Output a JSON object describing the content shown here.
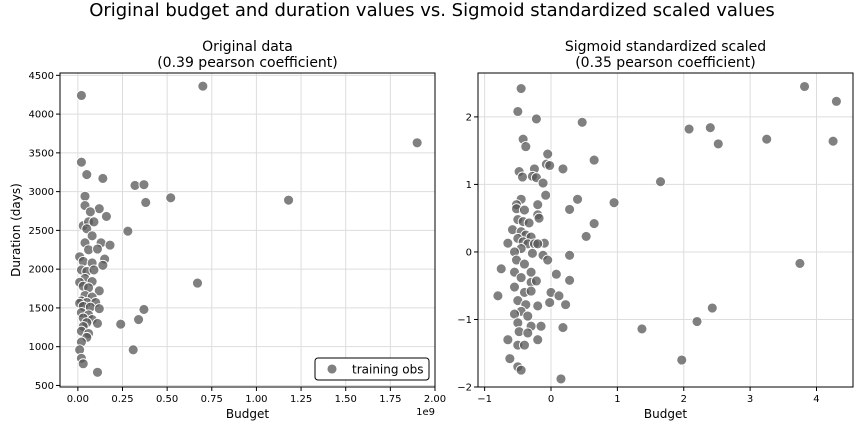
{
  "page": {
    "suptitle": "Original budget and duration values vs. Sigmoid standardized scaled values"
  },
  "colors": {
    "point": "#555555",
    "point_edge": "#ffffff",
    "axis": "#000000",
    "grid": "#dddddd"
  },
  "chart_data": [
    {
      "type": "scatter",
      "title": "Original data",
      "subtitle": "(0.39 pearson coefficient)",
      "xlabel": "Budget",
      "ylabel": "Duration (days)",
      "x_multiplier_label": "1e9",
      "xlim": [
        -0.1,
        2.0
      ],
      "ylim": [
        480,
        4530
      ],
      "xticks": [
        0.0,
        0.25,
        0.5,
        0.75,
        1.0,
        1.25,
        1.5,
        1.75,
        2.0
      ],
      "xtick_labels": [
        "0.00",
        "0.25",
        "0.50",
        "0.75",
        "1.00",
        "1.25",
        "1.50",
        "1.75",
        "2.00"
      ],
      "yticks": [
        500,
        1000,
        1500,
        2000,
        2500,
        3000,
        3500,
        4000,
        4500
      ],
      "ytick_labels": [
        "500",
        "1000",
        "1500",
        "2000",
        "2500",
        "3000",
        "3500",
        "4000",
        "4500"
      ],
      "grid": true,
      "legend": {
        "position": "lower-right",
        "label": "training obs"
      },
      "series": [
        {
          "name": "training obs",
          "points": [
            [
              0.02,
              4240
            ],
            [
              0.7,
              4360
            ],
            [
              1.9,
              3630
            ],
            [
              0.02,
              3380
            ],
            [
              0.05,
              3220
            ],
            [
              0.14,
              3170
            ],
            [
              0.32,
              3080
            ],
            [
              0.37,
              3090
            ],
            [
              0.38,
              2860
            ],
            [
              0.52,
              2920
            ],
            [
              1.18,
              2890
            ],
            [
              0.04,
              2940
            ],
            [
              0.04,
              2820
            ],
            [
              0.12,
              2780
            ],
            [
              0.16,
              2680
            ],
            [
              0.07,
              2740
            ],
            [
              0.03,
              2560
            ],
            [
              0.06,
              2610
            ],
            [
              0.09,
              2610
            ],
            [
              0.05,
              2520
            ],
            [
              0.28,
              2490
            ],
            [
              0.08,
              2430
            ],
            [
              0.13,
              2340
            ],
            [
              0.18,
              2310
            ],
            [
              0.04,
              2340
            ],
            [
              0.06,
              2250
            ],
            [
              0.11,
              2260
            ],
            [
              0.01,
              2160
            ],
            [
              0.03,
              2100
            ],
            [
              0.08,
              2080
            ],
            [
              0.15,
              2130
            ],
            [
              0.14,
              2050
            ],
            [
              0.02,
              1990
            ],
            [
              0.05,
              1970
            ],
            [
              0.09,
              1990
            ],
            [
              0.04,
              1880
            ],
            [
              0.08,
              1840
            ],
            [
              0.01,
              1830
            ],
            [
              0.03,
              1780
            ],
            [
              0.06,
              1760
            ],
            [
              0.12,
              1720
            ],
            [
              0.04,
              1660
            ],
            [
              0.08,
              1640
            ],
            [
              0.67,
              1820
            ],
            [
              0.02,
              1590
            ],
            [
              0.05,
              1570
            ],
            [
              0.1,
              1570
            ],
            [
              0.01,
              1560
            ],
            [
              0.03,
              1520
            ],
            [
              0.07,
              1510
            ],
            [
              0.12,
              1490
            ],
            [
              0.37,
              1480
            ],
            [
              0.02,
              1440
            ],
            [
              0.06,
              1410
            ],
            [
              0.03,
              1370
            ],
            [
              0.08,
              1350
            ],
            [
              0.34,
              1350
            ],
            [
              0.05,
              1310
            ],
            [
              0.11,
              1300
            ],
            [
              0.24,
              1290
            ],
            [
              0.03,
              1260
            ],
            [
              0.02,
              1200
            ],
            [
              0.06,
              1170
            ],
            [
              0.05,
              1120
            ],
            [
              0.02,
              1060
            ],
            [
              0.01,
              960
            ],
            [
              0.31,
              960
            ],
            [
              0.02,
              850
            ],
            [
              0.03,
              780
            ],
            [
              0.11,
              670
            ]
          ]
        }
      ]
    },
    {
      "type": "scatter",
      "title": "Sigmoid standardized scaled",
      "subtitle": "(0.35 pearson coefficient)",
      "xlabel": "Budget",
      "ylabel": "",
      "xlim": [
        -1.1,
        4.55
      ],
      "ylim": [
        -2.0,
        2.65
      ],
      "xticks": [
        -1,
        0,
        1,
        2,
        3,
        4
      ],
      "xtick_labels": [
        "−1",
        "0",
        "1",
        "2",
        "3",
        "4"
      ],
      "yticks": [
        -2,
        -1,
        0,
        1,
        2
      ],
      "ytick_labels": [
        "−2",
        "−1",
        "0",
        "1",
        "2"
      ],
      "grid": true,
      "series": [
        {
          "name": "training obs",
          "points": [
            [
              -0.45,
              2.42
            ],
            [
              -0.5,
              2.08
            ],
            [
              -0.22,
              1.97
            ],
            [
              0.47,
              1.92
            ],
            [
              -0.42,
              1.67
            ],
            [
              -0.38,
              1.56
            ],
            [
              -0.05,
              1.45
            ],
            [
              -0.07,
              1.3
            ],
            [
              -0.02,
              1.28
            ],
            [
              0.65,
              1.36
            ],
            [
              0.18,
              1.23
            ],
            [
              -0.25,
              1.23
            ],
            [
              -0.48,
              1.19
            ],
            [
              -0.43,
              1.11
            ],
            [
              -0.28,
              1.12
            ],
            [
              -0.22,
              1.1
            ],
            [
              -0.12,
              1.02
            ],
            [
              -0.08,
              0.84
            ],
            [
              1.65,
              1.04
            ],
            [
              -0.45,
              0.78
            ],
            [
              -0.52,
              0.7
            ],
            [
              -0.52,
              0.64
            ],
            [
              -0.4,
              0.62
            ],
            [
              -0.2,
              0.7
            ],
            [
              -0.2,
              0.55
            ],
            [
              -0.18,
              0.5
            ],
            [
              0.4,
              0.78
            ],
            [
              0.95,
              0.73
            ],
            [
              0.28,
              0.63
            ],
            [
              0.65,
              0.42
            ],
            [
              -0.5,
              0.48
            ],
            [
              -0.42,
              0.45
            ],
            [
              -0.33,
              0.43
            ],
            [
              -0.58,
              0.33
            ],
            [
              -0.45,
              0.3
            ],
            [
              -0.38,
              0.25
            ],
            [
              -0.3,
              0.22
            ],
            [
              0.53,
              0.23
            ],
            [
              -0.5,
              0.2
            ],
            [
              -0.42,
              0.15
            ],
            [
              -0.35,
              0.12
            ],
            [
              -0.25,
              0.12
            ],
            [
              -0.1,
              0.13
            ],
            [
              -0.2,
              0.12
            ],
            [
              -0.65,
              0.13
            ],
            [
              -0.45,
              0.05
            ],
            [
              -0.55,
              0.0
            ],
            [
              -0.28,
              -0.02
            ],
            [
              -0.12,
              -0.05
            ],
            [
              -0.05,
              -0.12
            ],
            [
              0.28,
              -0.05
            ],
            [
              -0.52,
              -0.12
            ],
            [
              -0.4,
              -0.18
            ],
            [
              -0.75,
              -0.25
            ],
            [
              -0.55,
              -0.3
            ],
            [
              -0.3,
              -0.3
            ],
            [
              0.08,
              -0.33
            ],
            [
              -0.45,
              -0.38
            ],
            [
              -0.3,
              -0.45
            ],
            [
              -0.22,
              -0.43
            ],
            [
              0.28,
              -0.42
            ],
            [
              -0.55,
              -0.52
            ],
            [
              -0.4,
              -0.6
            ],
            [
              -0.3,
              -0.58
            ],
            [
              0.0,
              -0.6
            ],
            [
              0.12,
              -0.65
            ],
            [
              -0.8,
              -0.65
            ],
            [
              -0.5,
              -0.72
            ],
            [
              -0.38,
              -0.78
            ],
            [
              -0.2,
              -0.8
            ],
            [
              -0.02,
              -0.75
            ],
            [
              0.22,
              -0.78
            ],
            [
              -0.45,
              -0.88
            ],
            [
              -0.55,
              -0.92
            ],
            [
              -0.35,
              -0.95
            ],
            [
              -0.5,
              -1.05
            ],
            [
              -0.3,
              -1.1
            ],
            [
              -0.15,
              -1.1
            ],
            [
              0.18,
              -1.12
            ],
            [
              -0.48,
              -1.18
            ],
            [
              -0.35,
              -1.2
            ],
            [
              -0.65,
              -1.3
            ],
            [
              -0.5,
              -1.38
            ],
            [
              -0.4,
              -1.38
            ],
            [
              -0.2,
              -1.3
            ],
            [
              -0.62,
              -1.58
            ],
            [
              -0.5,
              -1.7
            ],
            [
              -0.45,
              -1.75
            ],
            [
              0.15,
              -1.88
            ],
            [
              3.82,
              2.45
            ],
            [
              4.3,
              2.23
            ],
            [
              2.08,
              1.82
            ],
            [
              2.4,
              1.84
            ],
            [
              2.52,
              1.6
            ],
            [
              3.25,
              1.67
            ],
            [
              4.25,
              1.64
            ],
            [
              3.75,
              -0.17
            ],
            [
              2.43,
              -0.83
            ],
            [
              2.2,
              -1.03
            ],
            [
              1.37,
              -1.14
            ],
            [
              1.97,
              -1.6
            ]
          ]
        }
      ]
    }
  ]
}
